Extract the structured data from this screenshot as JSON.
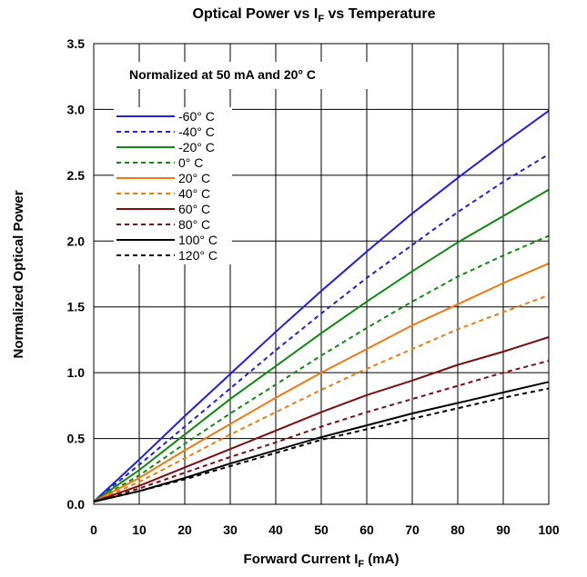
{
  "chart_data": {
    "type": "line",
    "title": {
      "pre": "Optical Power vs I",
      "sub": "F",
      "post": " vs Temperature"
    },
    "xlabel": {
      "pre": "Forward Current I",
      "sub": "F",
      "post": " (mA)"
    },
    "ylabel": "Normalized Optical Power",
    "annotation": "Normalized at 50 mA and 20° C",
    "xlim": [
      0,
      100
    ],
    "ylim": [
      0,
      3.5
    ],
    "xticks": [
      0,
      10,
      20,
      30,
      40,
      50,
      60,
      70,
      80,
      90,
      100
    ],
    "yticks": [
      "0.0",
      "0.5",
      "1.0",
      "1.5",
      "2.0",
      "2.5",
      "3.0",
      "3.5"
    ],
    "grid": true,
    "legend_position": "top-left",
    "x": [
      0,
      10,
      20,
      30,
      40,
      50,
      60,
      70,
      80,
      90,
      100
    ],
    "series": [
      {
        "name": "-60° C",
        "color": "#1f1fe0",
        "dash": false,
        "values": [
          0.02,
          0.34,
          0.67,
          0.99,
          1.31,
          1.62,
          1.92,
          2.21,
          2.48,
          2.74,
          2.99
        ]
      },
      {
        "name": "-40° C",
        "color": "#1f1fe0",
        "dash": true,
        "values": [
          0.02,
          0.3,
          0.59,
          0.88,
          1.17,
          1.45,
          1.72,
          1.97,
          2.22,
          2.45,
          2.66
        ]
      },
      {
        "name": "-20° C",
        "color": "#108a10",
        "dash": false,
        "values": [
          0.02,
          0.26,
          0.53,
          0.8,
          1.05,
          1.3,
          1.54,
          1.77,
          1.99,
          2.19,
          2.39
        ]
      },
      {
        "name": "0° C",
        "color": "#108a10",
        "dash": true,
        "values": [
          0.02,
          0.22,
          0.46,
          0.69,
          0.91,
          1.13,
          1.34,
          1.54,
          1.73,
          1.89,
          2.04
        ]
      },
      {
        "name": "20° C",
        "color": "#f07a10",
        "dash": false,
        "values": [
          0.02,
          0.2,
          0.41,
          0.61,
          0.81,
          1.0,
          1.18,
          1.36,
          1.52,
          1.68,
          1.83
        ]
      },
      {
        "name": "40° C",
        "color": "#f07a10",
        "dash": true,
        "values": [
          0.02,
          0.17,
          0.35,
          0.53,
          0.7,
          0.87,
          1.03,
          1.18,
          1.33,
          1.46,
          1.59
        ]
      },
      {
        "name": "60° C",
        "color": "#7a0e0e",
        "dash": false,
        "values": [
          0.02,
          0.14,
          0.28,
          0.42,
          0.56,
          0.7,
          0.83,
          0.94,
          1.06,
          1.16,
          1.27
        ]
      },
      {
        "name": "80° C",
        "color": "#7a0e0e",
        "dash": true,
        "values": [
          0.02,
          0.12,
          0.24,
          0.36,
          0.47,
          0.59,
          0.7,
          0.8,
          0.9,
          1.0,
          1.09
        ]
      },
      {
        "name": "100° C",
        "color": "#000000",
        "dash": false,
        "values": [
          0.02,
          0.1,
          0.2,
          0.31,
          0.41,
          0.51,
          0.6,
          0.69,
          0.77,
          0.85,
          0.93
        ]
      },
      {
        "name": "120° C",
        "color": "#000000",
        "dash": true,
        "values": [
          0.02,
          0.1,
          0.19,
          0.29,
          0.39,
          0.49,
          0.57,
          0.65,
          0.73,
          0.81,
          0.88
        ]
      }
    ]
  }
}
